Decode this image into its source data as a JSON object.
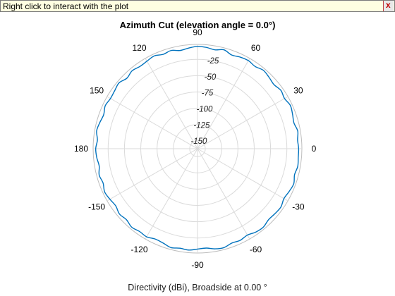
{
  "tooltip": {
    "text": "Right click to interact with the plot",
    "close_label": "x"
  },
  "chart_data": {
    "type": "line",
    "projection": "polar",
    "title": "Azimuth Cut (elevation angle = 0.0°)",
    "xlabel": "Directivity (dBi), Broadside at 0.00 °",
    "theta_tick_labels": [
      "0",
      "30",
      "60",
      "90",
      "120",
      "150",
      "180",
      "-150",
      "-120",
      "-90",
      "-60",
      "-30"
    ],
    "theta_ticks": [
      0,
      30,
      60,
      90,
      120,
      150,
      180,
      210,
      240,
      270,
      300,
      330
    ],
    "r_tick_labels": [
      "-150",
      "-125",
      "-100",
      "-75",
      "-50",
      "-25"
    ],
    "r_ticks": [
      -150,
      -125,
      -100,
      -75,
      -50,
      -25
    ],
    "rlim": [
      -162,
      -2
    ],
    "grid": true,
    "line_color": "#0072bd",
    "series": [
      {
        "azimuth_deg": [
          0,
          5,
          10,
          15,
          20,
          25,
          30,
          35,
          40,
          45,
          50,
          55,
          60,
          65,
          70,
          75,
          80,
          85,
          90,
          95,
          100,
          105,
          110,
          115,
          120,
          125,
          130,
          135,
          140,
          145,
          150,
          155,
          160,
          165,
          170,
          175,
          180,
          185,
          190,
          195,
          200,
          205,
          210,
          215,
          220,
          225,
          230,
          235,
          240,
          245,
          250,
          255,
          260,
          265,
          270,
          275,
          280,
          285,
          290,
          295,
          300,
          305,
          310,
          315,
          320,
          325,
          330,
          335,
          340,
          345,
          350,
          355
        ],
        "directivity_dbi": [
          -7,
          -8,
          -6,
          -9,
          -7,
          -5,
          -8,
          -6,
          -9,
          -7,
          -5,
          -8,
          -6,
          -7,
          -9,
          -5,
          -8,
          -6,
          -5,
          -7,
          -9,
          -6,
          -8,
          -5,
          -7,
          -8,
          -6,
          -9,
          -5,
          -7,
          -8,
          -6,
          -9,
          -7,
          -5,
          -8,
          -6,
          -7,
          -9,
          -6,
          -8,
          -5,
          -7,
          -9,
          -6,
          -8,
          -5,
          -7,
          -6,
          -9,
          -8,
          -5,
          -7,
          -6,
          -8,
          -9,
          -6,
          -5,
          -8,
          -7,
          -9,
          -6,
          -5,
          -8,
          -7,
          -6,
          -9,
          -7,
          -5,
          -8,
          -6,
          -7
        ]
      }
    ]
  }
}
